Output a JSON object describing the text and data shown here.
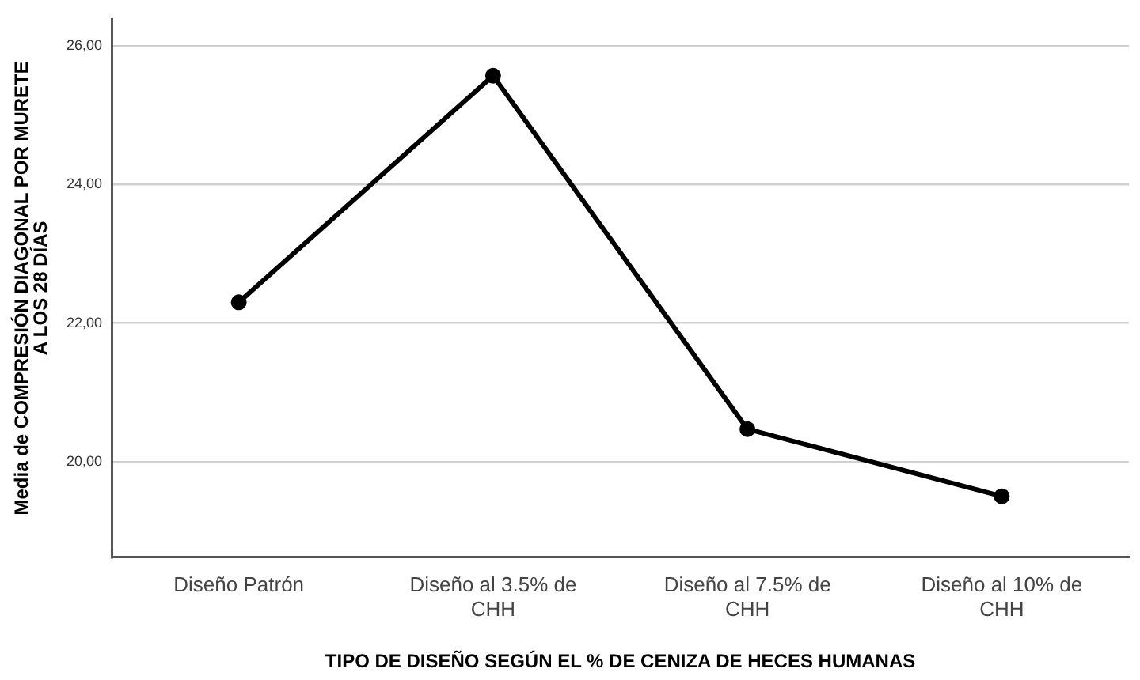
{
  "chart_data": {
    "type": "line",
    "xlabel": "TIPO DE DISEÑO SEGÚN EL % DE CENIZA DE HECES HUMANAS",
    "ylabel": "Media de COMPRESIÓN DIAGONAL POR MURETE A LOS 28 DÍAS",
    "categories": [
      "Diseño Patrón",
      "Diseño al 3.5% de CHH",
      "Diseño al 7.5% de CHH",
      "Diseño al 10% de CHH"
    ],
    "series": [
      {
        "color": "#000000",
        "values": [
          22.3,
          25.57,
          20.47,
          19.5
        ]
      }
    ],
    "ylim": [
      18.62,
      26.39
    ],
    "yticks": [
      {
        "value": 20,
        "label": "20,00"
      },
      {
        "value": 22,
        "label": "22,00"
      },
      {
        "value": 24,
        "label": "24,00"
      },
      {
        "value": 26,
        "label": "26,00"
      }
    ],
    "grid": "y",
    "legend": false,
    "marker": "circle",
    "line_style": "solid"
  }
}
